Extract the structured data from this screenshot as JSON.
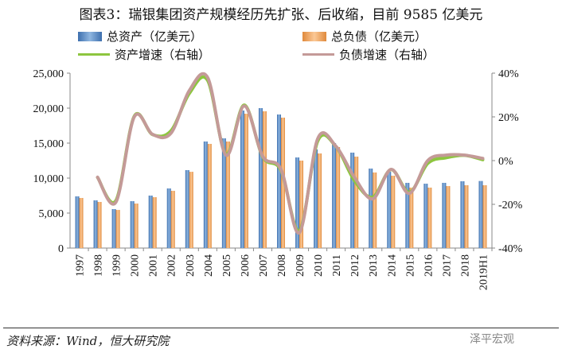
{
  "title": "图表3：瑞银集团资产规模经历先扩张、后收缩，目前 9585 亿美元",
  "source": "资料来源：Wind，恒大研究院",
  "watermark": "泽平宏观",
  "colors": {
    "assets": "#5b8fc9",
    "liabilities": "#f0a45c",
    "assets_growth": "#8dc63f",
    "liab_growth": "#c49a98"
  },
  "chart_data": {
    "type": "bar+line",
    "categories": [
      "1997",
      "1998",
      "1999",
      "2000",
      "2001",
      "2002",
      "2003",
      "2004",
      "2005",
      "2006",
      "2007",
      "2008",
      "2009",
      "2010",
      "2011",
      "2012",
      "2013",
      "2014",
      "2015",
      "2016",
      "2017",
      "2018",
      "2019H1"
    ],
    "series": [
      {
        "name": "总资产（亿美元）",
        "type": "bar",
        "axis": "left",
        "values": [
          7390,
          6820,
          5570,
          6700,
          7500,
          8520,
          11140,
          15230,
          15680,
          19660,
          20000,
          19090,
          12950,
          14100,
          15000,
          13640,
          11360,
          10900,
          9320,
          9200,
          9320,
          9545,
          9585
        ]
      },
      {
        "name": "总负债（亿美元）",
        "type": "bar",
        "axis": "left",
        "values": [
          7160,
          6590,
          5450,
          6360,
          7270,
          8180,
          10900,
          14890,
          15230,
          19200,
          19550,
          18640,
          12500,
          13520,
          14430,
          13070,
          10800,
          10340,
          8640,
          8640,
          8860,
          8980,
          8980
        ]
      },
      {
        "name": "资产增速（右轴）",
        "type": "line",
        "axis": "right",
        "values": [
          null,
          -7.7,
          -18.3,
          20.3,
          11.9,
          13.6,
          30.7,
          36.7,
          3.0,
          25.4,
          1.7,
          -4.5,
          -32.1,
          8.9,
          6.4,
          -9.1,
          -16.7,
          -4.1,
          -14.5,
          -1.3,
          1.3,
          2.4,
          0.4
        ]
      },
      {
        "name": "负债增速（右轴）",
        "type": "line",
        "axis": "right",
        "values": [
          null,
          -7.6,
          -19.0,
          20.0,
          12.0,
          12.5,
          32.0,
          38.0,
          2.5,
          25.0,
          2.0,
          -4.0,
          -33.0,
          10.0,
          6.5,
          -7.6,
          -17.5,
          -4.0,
          -15.0,
          0.0,
          2.5,
          2.5,
          1.0
        ]
      }
    ],
    "left_axis": {
      "ylim": [
        0,
        25000
      ],
      "ticks": [
        "0",
        "5,000",
        "10,000",
        "15,000",
        "20,000",
        "25,000"
      ]
    },
    "right_axis": {
      "ylim": [
        -40,
        40
      ],
      "ticks": [
        "-40%",
        "-20%",
        "0%",
        "20%",
        "40%"
      ]
    },
    "legend": "top"
  }
}
